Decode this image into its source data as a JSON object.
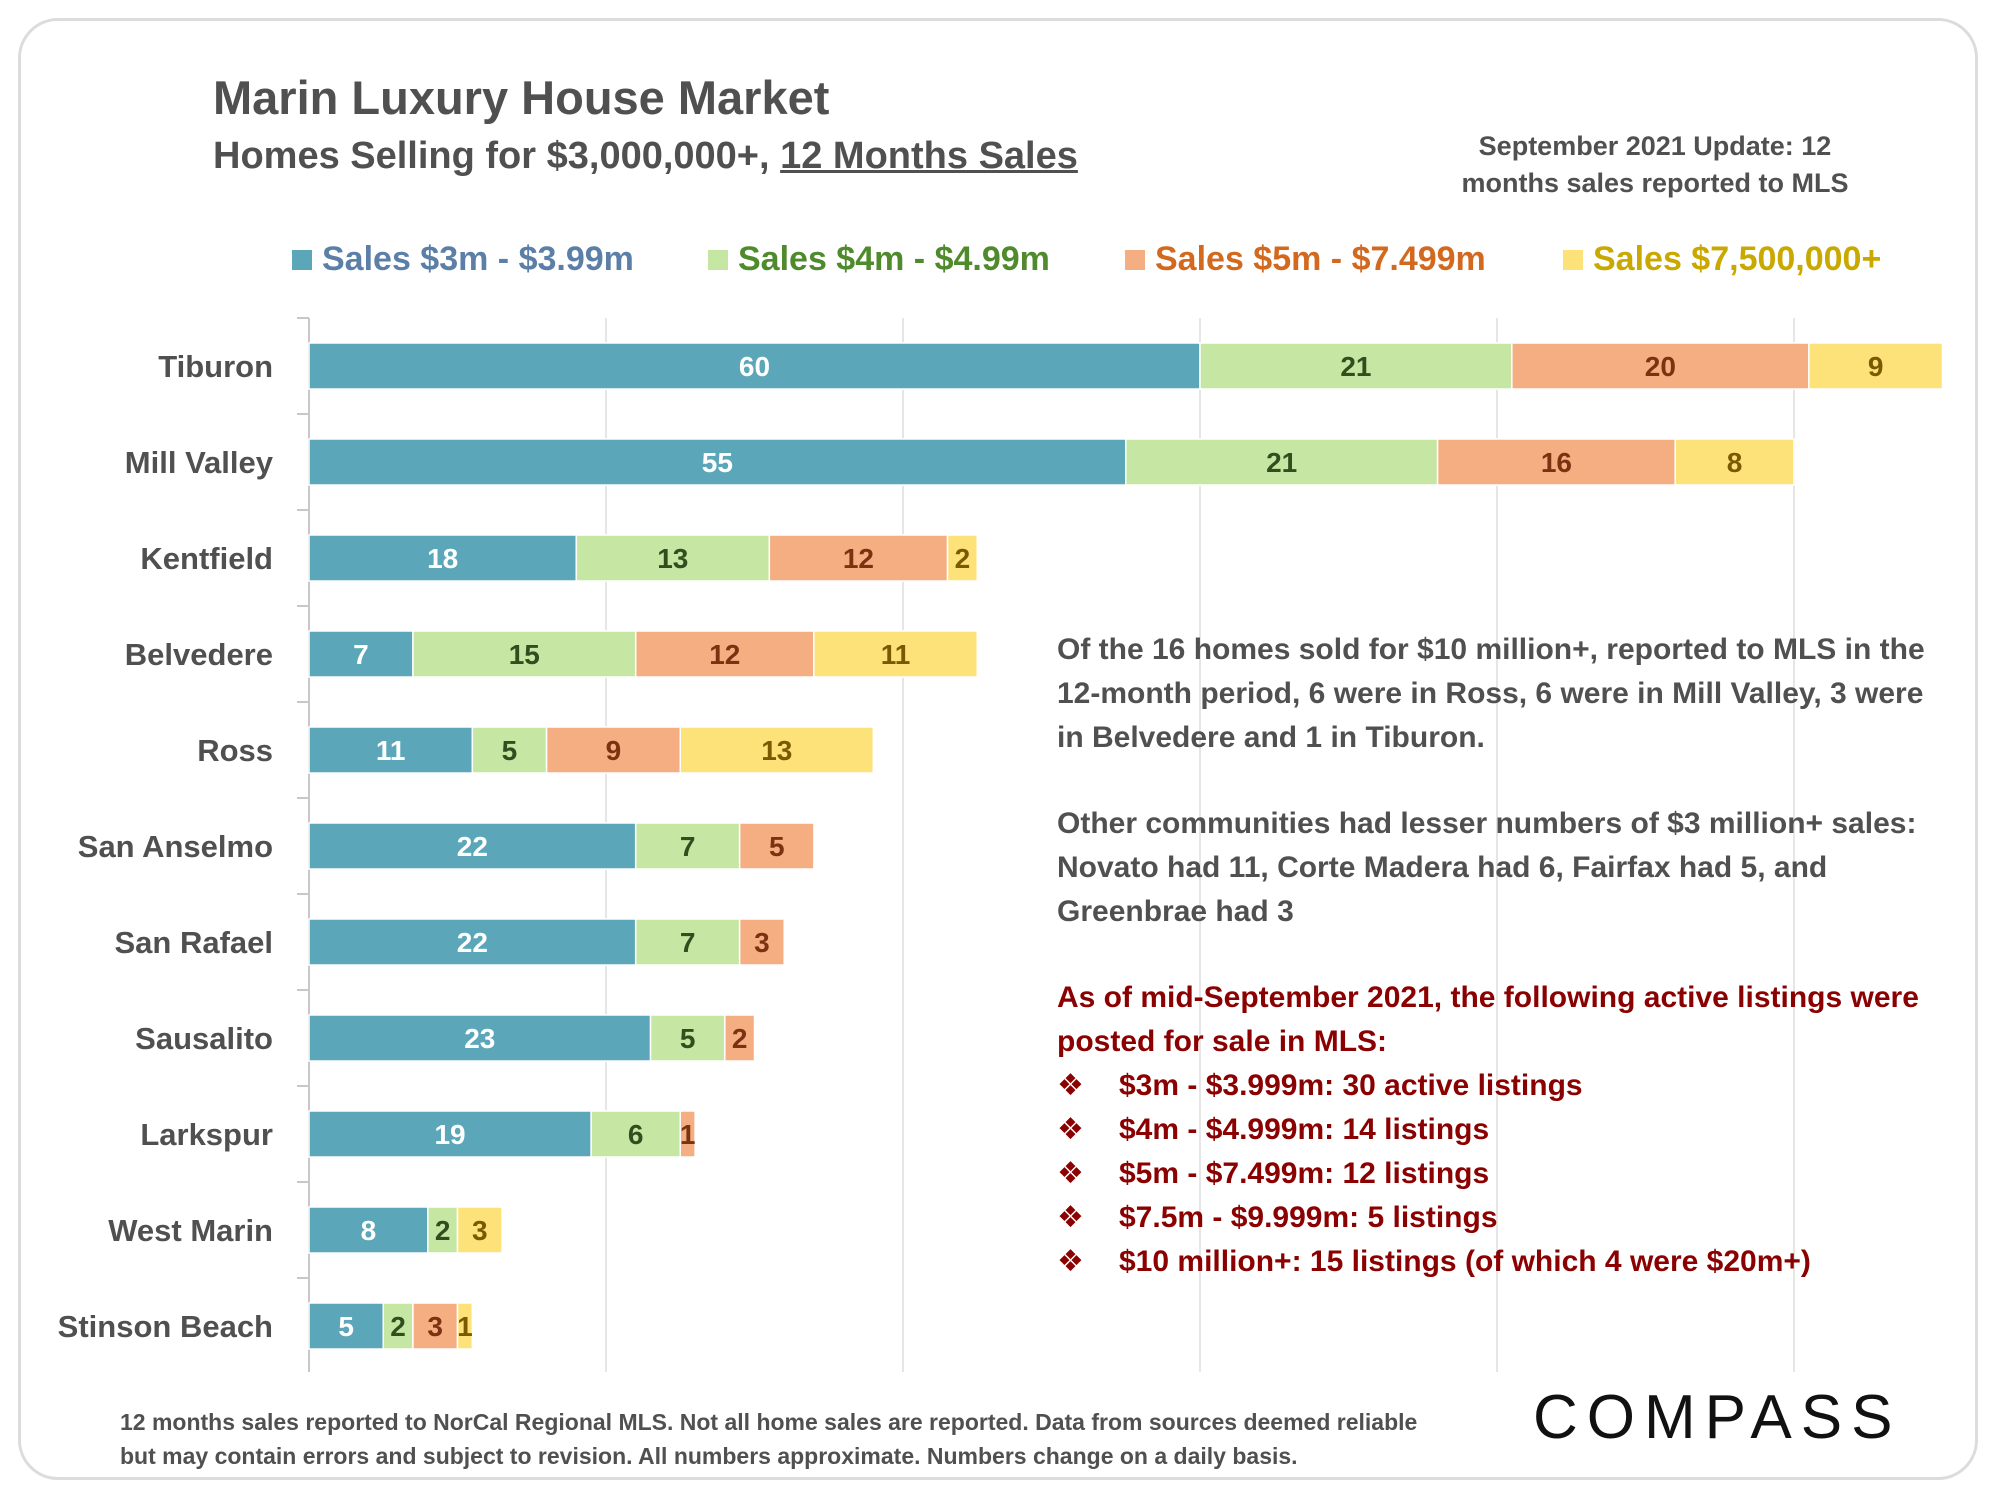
{
  "header": {
    "title": "Marin Luxury House Market",
    "subtitle_prefix": "Homes Selling for $3,000,000+, ",
    "subtitle_underlined": "12 Months Sales",
    "update_line1": "September 2021 Update: 12",
    "update_line2": "months sales reported to MLS"
  },
  "colors": {
    "series_fill": [
      "#5ba6b8",
      "#c6e6a3",
      "#f4ae82",
      "#fde27a"
    ],
    "legend_text": [
      "#5b7fa6",
      "#4f8a2c",
      "#d2691e",
      "#c9a800"
    ],
    "label_text": [
      "#ffffff",
      "#2f4f1f",
      "#7a3210",
      "#7a5a00"
    ],
    "axis": "#c8c8c8",
    "text": "#505050",
    "red_text": "#8b0000"
  },
  "chart_data": {
    "type": "bar",
    "orientation": "horizontal",
    "stacked": true,
    "categories": [
      "Tiburon",
      "Mill Valley",
      "Kentfield",
      "Belvedere",
      "Ross",
      "San Anselmo",
      "San Rafael",
      "Sausalito",
      "Larkspur",
      "West Marin",
      "Stinson Beach"
    ],
    "series": [
      {
        "name": "Sales $3m - $3.99m",
        "values": [
          60,
          55,
          18,
          7,
          11,
          22,
          22,
          23,
          19,
          8,
          5
        ]
      },
      {
        "name": "Sales $4m - $4.99m",
        "values": [
          21,
          21,
          13,
          15,
          5,
          7,
          7,
          5,
          6,
          2,
          2
        ]
      },
      {
        "name": "Sales $5m - $7.499m",
        "values": [
          20,
          16,
          12,
          12,
          9,
          5,
          3,
          2,
          1,
          0,
          3
        ]
      },
      {
        "name": "Sales $7,500,000+",
        "values": [
          9,
          8,
          2,
          11,
          13,
          0,
          0,
          0,
          0,
          3,
          1
        ]
      }
    ],
    "xlim": [
      0,
      115
    ],
    "grid": true,
    "legend_position": "top",
    "data_labels": true
  },
  "notes": {
    "para1": "Of the 16 homes sold for $10 million+, reported to MLS in the 12-month period, 6 were in Ross, 6 were in Mill Valley, 3 were in Belvedere and 1 in Tiburon.",
    "para2": "Other communities had lesser numbers of $3 million+ sales: Novato had 11, Corte Madera had 6, Fairfax had 5, and Greenbrae had 3",
    "active_heading": "As of mid-September 2021, the following active listings were posted for sale in MLS:",
    "bullet_symbol": "❖",
    "active_items": [
      "$3m - $3.999m:  30 active listings",
      "$4m - $4.999m:  14 listings",
      "$5m - $7.499m:  12 listings",
      "$7.5m - $9.999m:  5 listings",
      "$10 million+:  15 listings (of which 4 were $20m+)"
    ]
  },
  "footnote": {
    "line1": "12 months sales reported to NorCal Regional MLS. Not all home sales are reported. Data from sources deemed reliable",
    "line2": "but may contain errors and subject to revision. All numbers approximate. Numbers change on a daily basis."
  },
  "brand": {
    "logo_text": "COMPASS"
  }
}
